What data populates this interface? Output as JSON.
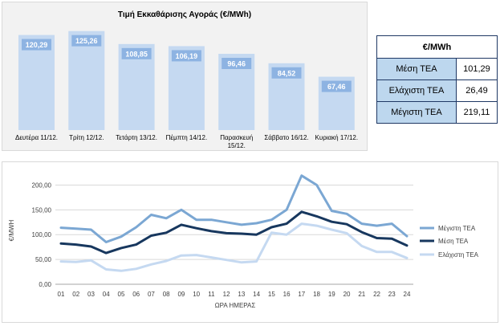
{
  "chart_data": [
    {
      "type": "bar",
      "title": "Τιμή Εκκαθάρισης Αγοράς (€/MWh)",
      "categories": [
        "Δευτέρα 11/12.",
        "Τρίτη 12/12.",
        "Τετάρτη 13/12.",
        "Πέμπτη 14/12.",
        "Παρασκευή 15/12.",
        "Σάββατο 16/12.",
        "Κυριακή 17/12."
      ],
      "values": [
        120.29,
        125.26,
        108.85,
        106.19,
        96.46,
        84.52,
        67.46
      ],
      "value_labels": [
        "120,29",
        "125,26",
        "108,85",
        "106,19",
        "96,46",
        "84,52",
        "67,46"
      ],
      "ylim": [
        0,
        130
      ],
      "grid": false,
      "color": "#c5d9f1",
      "label_bg": "#8db3e2"
    },
    {
      "type": "line",
      "xlabel": "ΩΡΑ ΗΜΕΡΑΣ",
      "ylabel": "€/MWH",
      "x": [
        "01",
        "02",
        "03",
        "04",
        "05",
        "06",
        "07",
        "08",
        "09",
        "10",
        "11",
        "12",
        "13",
        "14",
        "15",
        "16",
        "17",
        "18",
        "19",
        "20",
        "21",
        "22",
        "23",
        "24"
      ],
      "yticks": [
        "0,00",
        "50,00",
        "100,00",
        "150,00",
        "200,00"
      ],
      "ylim": [
        0,
        225
      ],
      "grid": true,
      "legend_position": "right",
      "series": [
        {
          "name": "Μέγιστη ΤΕΑ",
          "color": "#7ba7d3",
          "values": [
            114,
            112,
            110,
            85,
            96,
            115,
            140,
            133,
            150,
            130,
            130,
            125,
            120,
            123,
            130,
            150,
            219,
            200,
            148,
            142,
            122,
            118,
            122,
            97
          ]
        },
        {
          "name": "Μέση ΤΕΑ",
          "color": "#17375e",
          "values": [
            82,
            80,
            76,
            63,
            73,
            80,
            98,
            104,
            120,
            113,
            107,
            103,
            102,
            100,
            115,
            122,
            146,
            137,
            126,
            121,
            105,
            93,
            92,
            78
          ]
        },
        {
          "name": "Ελάχιστη ΤΕΑ",
          "color": "#c5d9f1",
          "values": [
            46,
            45,
            48,
            30,
            27,
            31,
            40,
            47,
            58,
            59,
            54,
            49,
            44,
            46,
            104,
            100,
            122,
            118,
            110,
            103,
            77,
            65,
            65,
            53
          ]
        }
      ]
    }
  ],
  "stats_table": {
    "header": "€/MWh",
    "rows": [
      {
        "label": "Μέση ΤΕΑ",
        "value": "101,29"
      },
      {
        "label": "Ελάχιστη ΤΕΑ",
        "value": "26,49"
      },
      {
        "label": "Μέγιστη ΤΕΑ",
        "value": "219,11"
      }
    ]
  }
}
